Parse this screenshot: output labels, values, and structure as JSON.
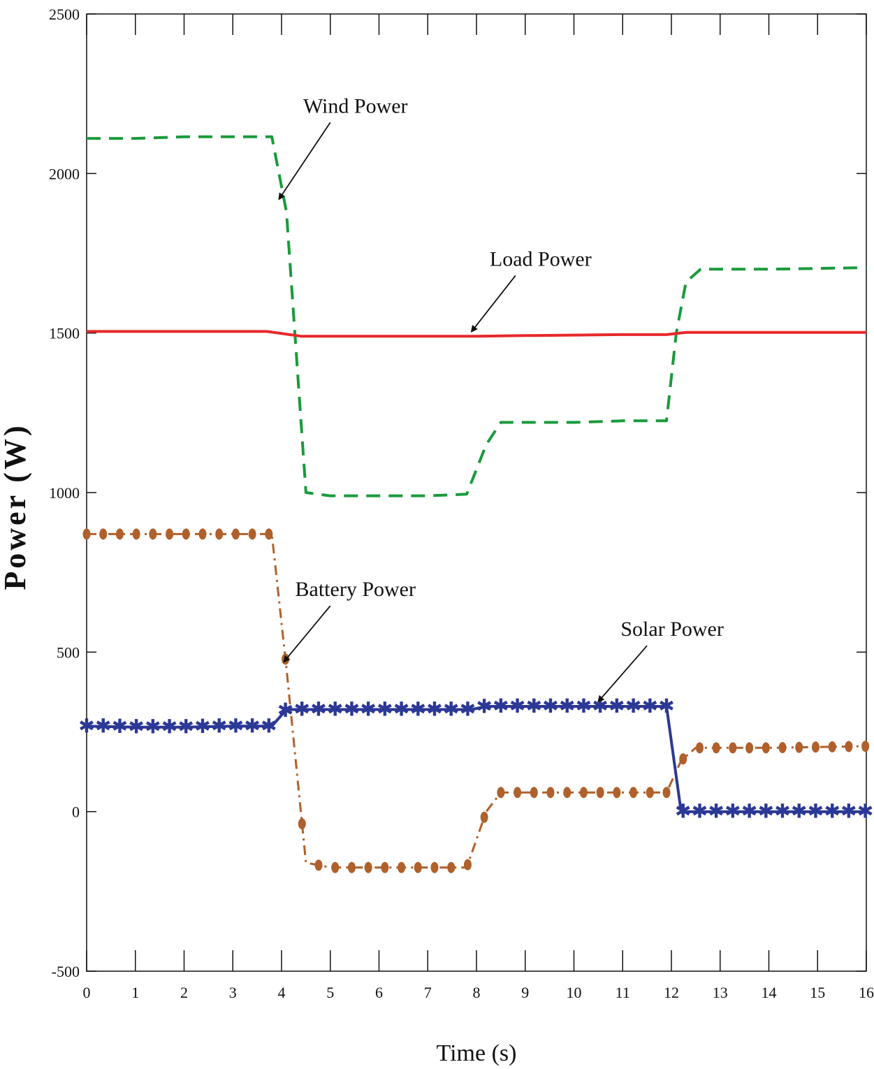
{
  "chart_data": {
    "type": "line",
    "title": "",
    "xlabel": "Time (s)",
    "ylabel": "Power (W)",
    "xlim": [
      0,
      16
    ],
    "ylim": [
      -500,
      2500
    ],
    "x_ticks": [
      0,
      1,
      2,
      3,
      4,
      5,
      6,
      7,
      8,
      9,
      10,
      11,
      12,
      13,
      14,
      15,
      16
    ],
    "y_ticks": [
      -500,
      0,
      500,
      1000,
      1500,
      2000,
      2500
    ],
    "grid": false,
    "legend": "none",
    "series": [
      {
        "name": "Wind Power",
        "color": "#1a9a3c",
        "style": "dashed",
        "points": [
          [
            0,
            2110
          ],
          [
            1,
            2110
          ],
          [
            2,
            2115
          ],
          [
            3,
            2115
          ],
          [
            3.8,
            2115
          ],
          [
            4.1,
            1880
          ],
          [
            4.5,
            1000
          ],
          [
            5,
            990
          ],
          [
            6,
            990
          ],
          [
            7,
            990
          ],
          [
            7.8,
            995
          ],
          [
            8.2,
            1150
          ],
          [
            8.5,
            1220
          ],
          [
            10,
            1220
          ],
          [
            11,
            1225
          ],
          [
            11.9,
            1225
          ],
          [
            12.1,
            1500
          ],
          [
            12.3,
            1660
          ],
          [
            12.6,
            1700
          ],
          [
            14,
            1700
          ],
          [
            16,
            1705
          ]
        ]
      },
      {
        "name": "Load Power",
        "color": "#e8282b",
        "style": "solid",
        "points": [
          [
            0,
            1505
          ],
          [
            2,
            1505
          ],
          [
            3.7,
            1505
          ],
          [
            4.4,
            1490
          ],
          [
            6,
            1490
          ],
          [
            8,
            1490
          ],
          [
            9,
            1492
          ],
          [
            11,
            1495
          ],
          [
            11.9,
            1495
          ],
          [
            12.3,
            1502
          ],
          [
            14,
            1502
          ],
          [
            16,
            1502
          ]
        ]
      },
      {
        "name": "Battery Power",
        "color": "#b0602b",
        "style": "dash-dot-circle",
        "points": [
          [
            0,
            870
          ],
          [
            1,
            870
          ],
          [
            2,
            870
          ],
          [
            3,
            870
          ],
          [
            3.8,
            870
          ],
          [
            4.1,
            450
          ],
          [
            4.5,
            -160
          ],
          [
            5,
            -175
          ],
          [
            6,
            -175
          ],
          [
            7,
            -175
          ],
          [
            7.8,
            -175
          ],
          [
            8.2,
            0
          ],
          [
            8.5,
            60
          ],
          [
            10,
            60
          ],
          [
            11,
            60
          ],
          [
            11.9,
            60
          ],
          [
            12.2,
            160
          ],
          [
            12.5,
            200
          ],
          [
            14,
            200
          ],
          [
            16,
            205
          ]
        ]
      },
      {
        "name": "Solar Power",
        "color": "#2c3895",
        "style": "solid-star",
        "points": [
          [
            0,
            268
          ],
          [
            1,
            265
          ],
          [
            2,
            265
          ],
          [
            3,
            268
          ],
          [
            3.8,
            268
          ],
          [
            4.1,
            320
          ],
          [
            5,
            320
          ],
          [
            6,
            320
          ],
          [
            7,
            320
          ],
          [
            7.9,
            320
          ],
          [
            8.2,
            330
          ],
          [
            10,
            330
          ],
          [
            11,
            330
          ],
          [
            11.9,
            330
          ],
          [
            12.2,
            0
          ],
          [
            14,
            0
          ],
          [
            16,
            0
          ]
        ]
      }
    ],
    "annotations": [
      {
        "text": "Wind Power",
        "tip": [
          3.95,
          1920
        ],
        "tail": [
          5.0,
          2160
        ]
      },
      {
        "text": "Load Power",
        "tip": [
          7.9,
          1505
        ],
        "tail": [
          8.8,
          1680
        ]
      },
      {
        "text": "Battery Power",
        "tip": [
          4.05,
          470
        ],
        "tail": [
          5.0,
          645
        ]
      },
      {
        "text": "Solar Power",
        "tip": [
          10.5,
          345
        ],
        "tail": [
          11.5,
          520
        ]
      }
    ]
  }
}
